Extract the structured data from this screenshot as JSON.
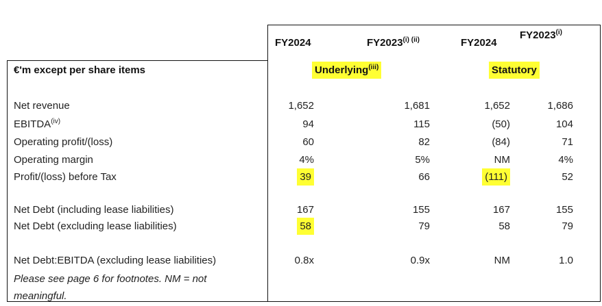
{
  "table": {
    "caption": "€'m except per share items",
    "columns": [
      {
        "label": "FY2024"
      },
      {
        "label": "FY2023",
        "sup": "(i) (ii)"
      },
      {
        "label": "FY2024"
      },
      {
        "label": "FY2023",
        "sup": "(i)"
      }
    ],
    "groups": [
      {
        "label": "Underlying",
        "sup": "(iii)"
      },
      {
        "label": "Statutory"
      }
    ],
    "rows": [
      {
        "label": "Net revenue",
        "cells": [
          "1,652",
          "1,681",
          "1,652",
          "1,686"
        ]
      },
      {
        "label": "EBITDA",
        "sup": "(iv)",
        "cells": [
          "94",
          "115",
          "(50)",
          "104"
        ]
      },
      {
        "label": "Operating profit/(loss)",
        "cells": [
          "60",
          "82",
          "(84)",
          "71"
        ]
      },
      {
        "label": "Operating margin",
        "cells": [
          "4%",
          "5%",
          "NM",
          "4%"
        ]
      },
      {
        "label": "Profit/(loss) before Tax",
        "cells": [
          "39",
          "66",
          "(111)",
          "52"
        ]
      },
      {
        "label": "Net Debt (including lease liabilities)",
        "cells": [
          "167",
          "155",
          "167",
          "155"
        ]
      },
      {
        "label": "Net Debt (excluding lease liabilities)",
        "cells": [
          "58",
          "79",
          "58",
          "79"
        ]
      },
      {
        "label": "Net Debt:EBITDA (excluding lease liabilities)",
        "cells": [
          "0.8x",
          "0.9x",
          "NM",
          "1.0"
        ]
      }
    ],
    "footnote": "Please see page 6 for footnotes. NM = not meaningful."
  }
}
